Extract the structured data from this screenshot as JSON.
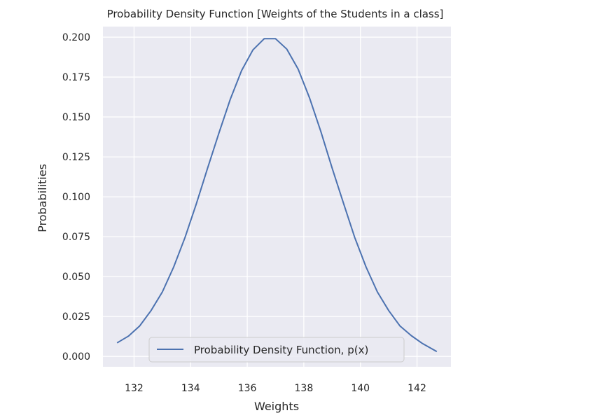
{
  "chart_data": {
    "type": "line",
    "title": "Probability Density Function [Weights of the Students in a class]",
    "xlabel": "Weights",
    "ylabel": "Probabilities",
    "xlim": [
      130.9,
      143.2
    ],
    "ylim": [
      -0.0065,
      0.2066
    ],
    "x_ticks": [
      132,
      134,
      136,
      138,
      140,
      142
    ],
    "y_ticks": [
      0.0,
      0.025,
      0.05,
      0.075,
      0.1,
      0.125,
      0.15,
      0.175,
      0.2
    ],
    "x_tick_labels": [
      "132",
      "134",
      "136",
      "138",
      "140",
      "142"
    ],
    "y_tick_labels": [
      "0.000",
      "0.025",
      "0.050",
      "0.075",
      "0.100",
      "0.125",
      "0.150",
      "0.175",
      "0.200"
    ],
    "grid": true,
    "legend_position": "lower-center",
    "series": [
      {
        "name": "Probability Density Function, p(x)",
        "color": "#4c72b0",
        "x": [
          131.4,
          131.8,
          132.2,
          132.6,
          133.0,
          133.4,
          133.8,
          134.2,
          134.6,
          135.0,
          135.4,
          135.8,
          136.2,
          136.6,
          137.0,
          137.4,
          137.8,
          138.2,
          138.6,
          139.0,
          139.4,
          139.8,
          140.2,
          140.6,
          141.0,
          141.4,
          141.8,
          142.2,
          142.7
        ],
        "y": [
          0.0085,
          0.0127,
          0.0191,
          0.0287,
          0.0404,
          0.056,
          0.0745,
          0.0955,
          0.118,
          0.14,
          0.161,
          0.179,
          0.192,
          0.199,
          0.199,
          0.1925,
          0.18,
          0.162,
          0.141,
          0.118,
          0.096,
          0.0745,
          0.056,
          0.0404,
          0.0287,
          0.019,
          0.013,
          0.008,
          0.003
        ]
      }
    ]
  }
}
